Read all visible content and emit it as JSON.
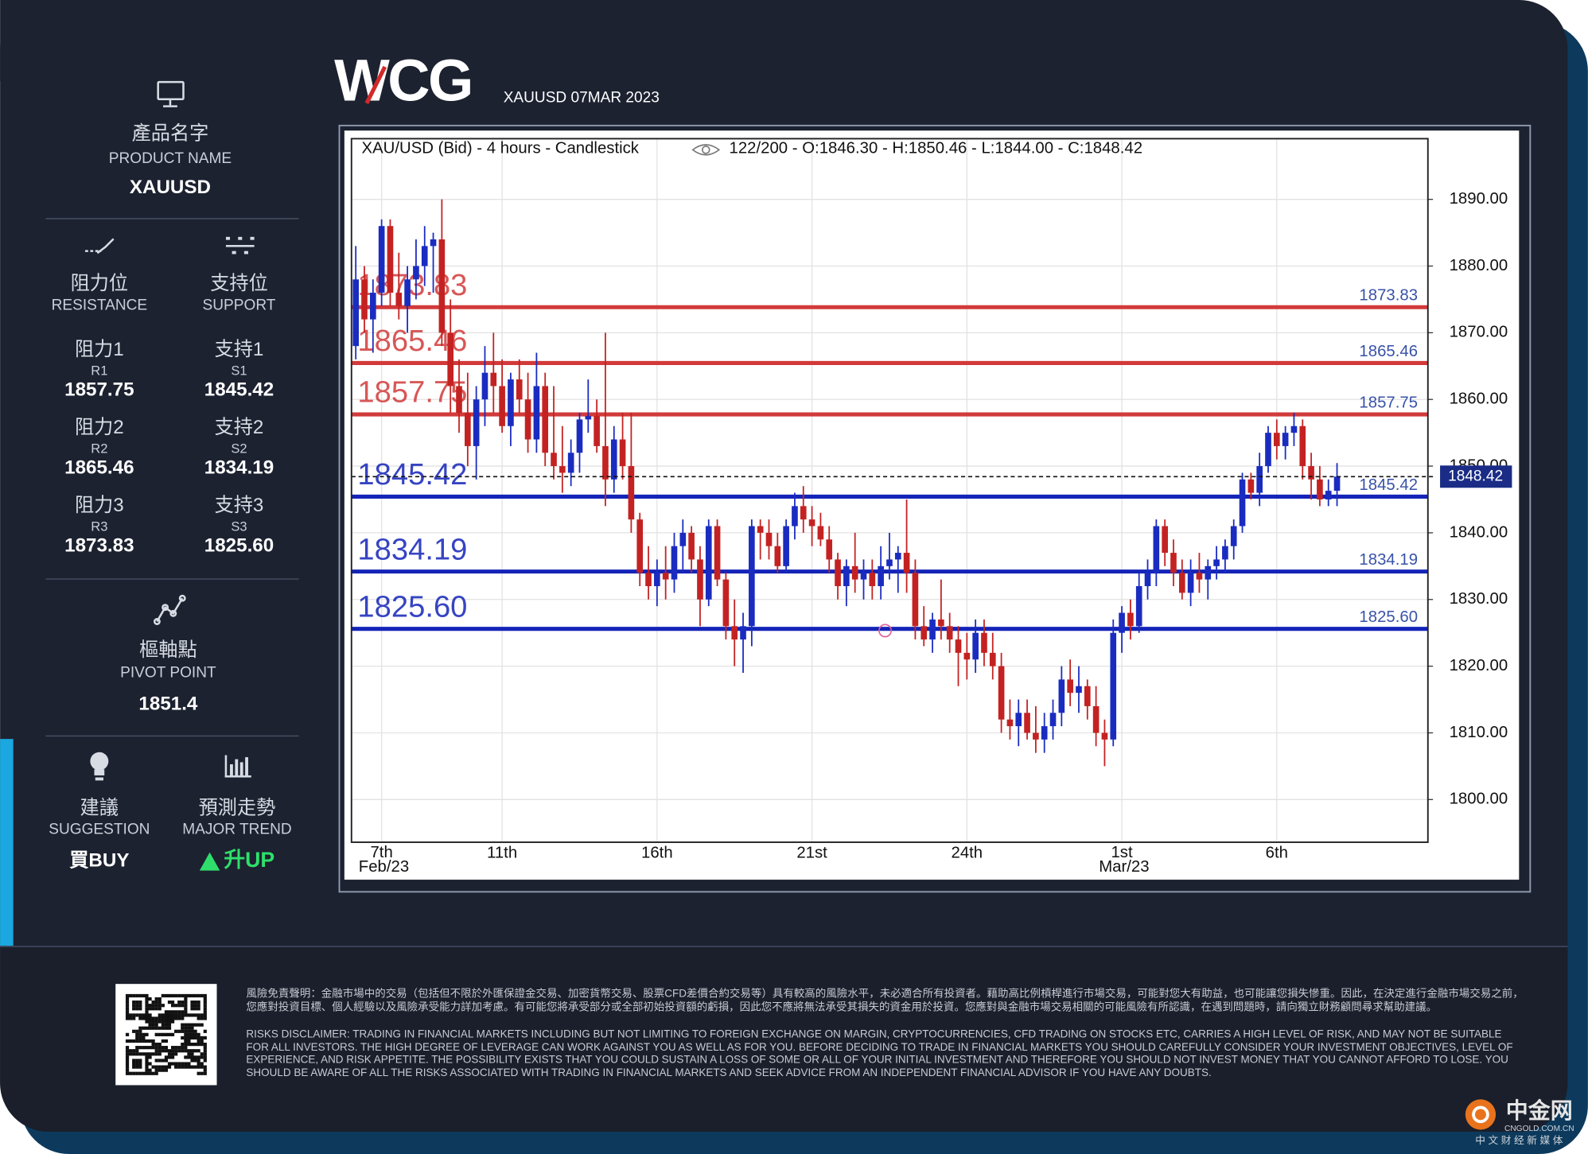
{
  "header": {
    "brand": "WCG",
    "subtitle": "XAUUSD 07MAR 2023"
  },
  "sidebar": {
    "product": {
      "label_zh": "產品名字",
      "label_en": "PRODUCT NAME",
      "value": "XAUUSD"
    },
    "resistance": {
      "label_zh": "阻力位",
      "label_en": "RESISTANCE",
      "levels": [
        {
          "label_zh": "阻力1",
          "code": "R1",
          "value": "1857.75"
        },
        {
          "label_zh": "阻力2",
          "code": "R2",
          "value": "1865.46"
        },
        {
          "label_zh": "阻力3",
          "code": "R3",
          "value": "1873.83"
        }
      ]
    },
    "support": {
      "label_zh": "支持位",
      "label_en": "SUPPORT",
      "levels": [
        {
          "label_zh": "支持1",
          "code": "S1",
          "value": "1845.42"
        },
        {
          "label_zh": "支持2",
          "code": "S2",
          "value": "1834.19"
        },
        {
          "label_zh": "支持3",
          "code": "S3",
          "value": "1825.60"
        }
      ]
    },
    "pivot": {
      "label_zh": "樞軸點",
      "label_en": "PIVOT POINT",
      "value": "1851.4"
    },
    "suggestion": {
      "label_zh": "建議",
      "label_en": "SUGGESTION",
      "value": "買BUY"
    },
    "trend": {
      "label_zh": "預測走勢",
      "label_en": "MAJOR TREND",
      "value": "升UP"
    }
  },
  "chart_data": {
    "type": "candlestick",
    "title": "XAU/USD (Bid) - 4 hours - Candlestick",
    "subtitle": "122/200 - O:1846.30 - H:1850.46 - L:1844.00 - C:1848.42",
    "up_color": "#1a2cc0",
    "down_color": "#c42222",
    "categories": [
      null,
      null,
      null,
      "7th Feb/23",
      null,
      null,
      null,
      null,
      null,
      null,
      null,
      null,
      null,
      null,
      null,
      null,
      null,
      "11th",
      null,
      null,
      null,
      null,
      null,
      null,
      null,
      null,
      null,
      null,
      null,
      null,
      null,
      null,
      null,
      null,
      null,
      "16th",
      null,
      null,
      null,
      null,
      null,
      null,
      null,
      null,
      null,
      null,
      null,
      null,
      null,
      null,
      null,
      null,
      null,
      "21st",
      null,
      null,
      null,
      null,
      null,
      null,
      null,
      null,
      null,
      null,
      null,
      null,
      null,
      null,
      null,
      null,
      null,
      "24th",
      null,
      null,
      null,
      null,
      null,
      null,
      null,
      null,
      null,
      null,
      null,
      null,
      null,
      null,
      null,
      null,
      null,
      "1st Mar/23",
      null,
      null,
      null,
      null,
      null,
      null,
      null,
      null,
      null,
      null,
      null,
      null,
      null,
      null,
      null,
      null,
      null,
      "6th",
      null,
      null,
      null,
      null,
      null,
      null,
      null
    ],
    "candles": [
      [
        1868,
        1883,
        1866,
        1878
      ],
      [
        1878,
        1880,
        1870,
        1872
      ],
      [
        1872,
        1878,
        1867,
        1876
      ],
      [
        1876,
        1887,
        1874,
        1886
      ],
      [
        1886,
        1887,
        1874,
        1876
      ],
      [
        1876,
        1882,
        1872,
        1874
      ],
      [
        1874,
        1880,
        1870,
        1878
      ],
      [
        1878,
        1884,
        1875,
        1880
      ],
      [
        1880,
        1886,
        1877,
        1883
      ],
      [
        1883,
        1885,
        1876,
        1884
      ],
      [
        1884,
        1890,
        1868,
        1870
      ],
      [
        1870,
        1875,
        1858,
        1862
      ],
      [
        1862,
        1866,
        1855,
        1858
      ],
      [
        1858,
        1864,
        1850,
        1853
      ],
      [
        1853,
        1862,
        1848,
        1860
      ],
      [
        1860,
        1868,
        1856,
        1864
      ],
      [
        1864,
        1870,
        1858,
        1862
      ],
      [
        1862,
        1866,
        1855,
        1856
      ],
      [
        1856,
        1864,
        1853,
        1863
      ],
      [
        1863,
        1866,
        1858,
        1860
      ],
      [
        1860,
        1864,
        1852,
        1854
      ],
      [
        1854,
        1867,
        1852,
        1862
      ],
      [
        1862,
        1864,
        1850,
        1852
      ],
      [
        1852,
        1862,
        1848,
        1850
      ],
      [
        1850,
        1856,
        1846,
        1849
      ],
      [
        1849,
        1854,
        1847,
        1852
      ],
      [
        1852,
        1858,
        1849,
        1857
      ],
      [
        1857,
        1863,
        1855,
        1857.5
      ],
      [
        1857.5,
        1860,
        1852,
        1853
      ],
      [
        1853,
        1870,
        1844,
        1848
      ],
      [
        1848,
        1856,
        1846,
        1854
      ],
      [
        1854,
        1858,
        1848,
        1850
      ],
      [
        1850,
        1858,
        1840,
        1842
      ],
      [
        1842,
        1843,
        1832,
        1834
      ],
      [
        1834,
        1838,
        1830,
        1832
      ],
      [
        1832,
        1836,
        1829,
        1834
      ],
      [
        1834,
        1838,
        1830,
        1833
      ],
      [
        1833,
        1840,
        1831,
        1838
      ],
      [
        1838,
        1842,
        1834,
        1840
      ],
      [
        1840,
        1841,
        1834,
        1836
      ],
      [
        1836,
        1838,
        1826,
        1830
      ],
      [
        1830,
        1842,
        1829,
        1841
      ],
      [
        1841,
        1842,
        1832,
        1833
      ],
      [
        1833,
        1834,
        1824,
        1826
      ],
      [
        1826,
        1830,
        1820,
        1824
      ],
      [
        1824,
        1828,
        1819,
        1826
      ],
      [
        1826,
        1842,
        1823,
        1841
      ],
      [
        1841,
        1842,
        1836,
        1840
      ],
      [
        1840,
        1842,
        1836,
        1838
      ],
      [
        1838,
        1840,
        1834,
        1835
      ],
      [
        1835,
        1842,
        1834,
        1841
      ],
      [
        1841,
        1846,
        1839,
        1844
      ],
      [
        1844,
        1847,
        1840,
        1842
      ],
      [
        1842,
        1844,
        1838,
        1841
      ],
      [
        1841,
        1843,
        1838,
        1839
      ],
      [
        1839,
        1841,
        1834,
        1836
      ],
      [
        1836,
        1837,
        1830,
        1832
      ],
      [
        1832,
        1836,
        1829,
        1835
      ],
      [
        1835,
        1840,
        1831,
        1833
      ],
      [
        1833,
        1836,
        1830,
        1834
      ],
      [
        1834,
        1836,
        1830,
        1832
      ],
      [
        1832,
        1838,
        1830,
        1835
      ],
      [
        1835,
        1840,
        1833,
        1836
      ],
      [
        1836,
        1838,
        1831,
        1837
      ],
      [
        1837,
        1845,
        1831,
        1834
      ],
      [
        1834,
        1836,
        1824,
        1826
      ],
      [
        1826,
        1829,
        1823,
        1824
      ],
      [
        1824,
        1828,
        1822,
        1827
      ],
      [
        1827,
        1833,
        1824,
        1826
      ],
      [
        1826,
        1828,
        1822,
        1824
      ],
      [
        1824,
        1826,
        1817,
        1822
      ],
      [
        1822,
        1825,
        1818,
        1821
      ],
      [
        1821,
        1827,
        1819,
        1825
      ],
      [
        1825,
        1827,
        1820,
        1822
      ],
      [
        1822,
        1825,
        1818,
        1820
      ],
      [
        1820,
        1822,
        1810,
        1812
      ],
      [
        1812,
        1815,
        1809,
        1811
      ],
      [
        1811,
        1815,
        1808,
        1813
      ],
      [
        1813,
        1815,
        1809,
        1810
      ],
      [
        1810,
        1814,
        1807,
        1809
      ],
      [
        1809,
        1813,
        1807,
        1811
      ],
      [
        1811,
        1815,
        1809,
        1813
      ],
      [
        1813,
        1820,
        1811,
        1818
      ],
      [
        1818,
        1821,
        1814,
        1816
      ],
      [
        1816,
        1820,
        1813,
        1817
      ],
      [
        1817,
        1818,
        1812,
        1814
      ],
      [
        1814,
        1817,
        1808,
        1810
      ],
      [
        1810,
        1812,
        1805,
        1809
      ],
      [
        1809,
        1827,
        1808,
        1825
      ],
      [
        1825,
        1829,
        1822,
        1828
      ],
      [
        1828,
        1830,
        1824,
        1826
      ],
      [
        1826,
        1834,
        1825,
        1832
      ],
      [
        1832,
        1836,
        1830,
        1834
      ],
      [
        1834,
        1842,
        1832,
        1841
      ],
      [
        1841,
        1842,
        1835,
        1837
      ],
      [
        1837,
        1839,
        1832,
        1834
      ],
      [
        1834,
        1836,
        1830,
        1831
      ],
      [
        1831,
        1836,
        1829,
        1834
      ],
      [
        1834,
        1837,
        1831,
        1833
      ],
      [
        1833,
        1836,
        1830,
        1835
      ],
      [
        1835,
        1838,
        1833,
        1836
      ],
      [
        1836,
        1839,
        1834,
        1838
      ],
      [
        1838,
        1842,
        1836,
        1841
      ],
      [
        1841,
        1849,
        1840,
        1848
      ],
      [
        1848,
        1849,
        1845,
        1846
      ],
      [
        1846,
        1852,
        1844,
        1850
      ],
      [
        1850,
        1856,
        1849,
        1855
      ],
      [
        1855,
        1857,
        1851,
        1853
      ],
      [
        1853,
        1856,
        1851,
        1855
      ],
      [
        1855,
        1858,
        1853,
        1856
      ],
      [
        1856,
        1857,
        1848,
        1850
      ],
      [
        1850,
        1852,
        1845,
        1848
      ],
      [
        1848,
        1850,
        1844,
        1845
      ],
      [
        1845,
        1848,
        1844,
        1846.3
      ],
      [
        1846.3,
        1850.46,
        1844,
        1848.42
      ]
    ],
    "ylim": [
      1793.6,
      1899.1
    ],
    "yticks": [
      {
        "value": 1800,
        "label": "1800.00"
      },
      {
        "value": 1810,
        "label": "1810.00"
      },
      {
        "value": 1820,
        "label": "1820.00"
      },
      {
        "value": 1830,
        "label": "1830.00"
      },
      {
        "value": 1840,
        "label": "1840.00"
      },
      {
        "value": 1850,
        "label": "1850.00"
      },
      {
        "value": 1860,
        "label": "1860.00"
      },
      {
        "value": 1870,
        "label": "1870.00"
      },
      {
        "value": 1880,
        "label": "1880.00"
      },
      {
        "value": 1890,
        "label": "1890.00"
      }
    ],
    "grid": true,
    "levels": [
      {
        "value": 1873.83,
        "label": "1873.83",
        "color": "#d23a3a"
      },
      {
        "value": 1865.46,
        "label": "1865.46",
        "color": "#d23a3a"
      },
      {
        "value": 1857.75,
        "label": "1857.75",
        "color": "#d23a3a"
      },
      {
        "value": 1845.42,
        "label": "1845.42",
        "color": "#1424b8"
      },
      {
        "value": 1834.19,
        "label": "1834.19",
        "color": "#1424b8"
      },
      {
        "value": 1825.6,
        "label": "1825.60",
        "color": "#1424b8"
      }
    ],
    "last_price": {
      "value": 1848.42,
      "label": "1848.42"
    }
  },
  "footer": {
    "disclaimer_zh": "風險免責聲明：金融市場中的交易（包括但不限於外匯保證金交易、加密貨幣交易、股票CFD差價合約交易等）具有較高的風險水平，未必適合所有投資者。藉助高比例槓桿進行市場交易，可能對您大有助益，也可能讓您損失慘重。因此，在決定進行金融市場交易之前，您應對投資目標、個人經驗以及風險承受能力詳加考慮。有可能您將承受部分或全部初始投資額的虧損，因此您不應將無法承受其損失的資金用於投資。您應對與金融市場交易相關的可能風險有所認識，在遇到問題時，請向獨立財務顧問尋求幫助建議。",
    "disclaimer_en": "RISKS DISCLAIMER: TRADING IN FINANCIAL MARKETS INCLUDING BUT NOT LIMITING TO FOREIGN EXCHANGE ON MARGIN, CRYPTOCURRENCIES, CFD TRADING ON STOCKS ETC, CARRIES A HIGH LEVEL OF RISK, AND MAY NOT BE SUITABLE FOR ALL INVESTORS. THE HIGH DEGREE OF LEVERAGE CAN WORK AGAINST YOU AS WELL AS FOR YOU. BEFORE DECIDING TO TRADE IN FINANCIAL MARKETS YOU SHOULD CAREFULLY CONSIDER YOUR INVESTMENT OBJECTIVES, LEVEL OF EXPERIENCE, AND RISK APPETITE. THE POSSIBILITY EXISTS THAT YOU COULD SUSTAIN A LOSS OF SOME OR ALL OF YOUR INITIAL INVESTMENT AND THEREFORE YOU SHOULD NOT INVEST MONEY THAT YOU CANNOT AFFORD TO LOSE. YOU SHOULD BE AWARE OF ALL THE RISKS ASSOCIATED WITH TRADING IN FINANCIAL MARKETS AND SEEK ADVICE FROM AN INDEPENDENT FINANCIAL ADVISOR IF YOU HAVE ANY DOUBTS.",
    "brand_zh": "中金网",
    "brand_url": "CNGOLD.COM.CN",
    "brand_tagline": "中 文 财 经 新 媒 体"
  }
}
